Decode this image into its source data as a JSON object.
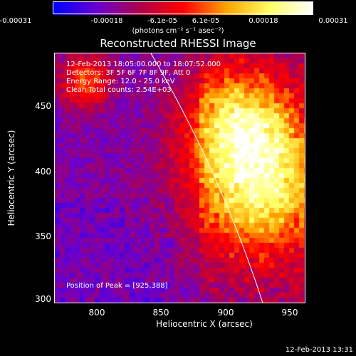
{
  "colorbar": {
    "ticks": [
      "-0.00031",
      "-0.00018",
      "-6.1e-05",
      "6.1e-05",
      "0.00018",
      "0.00031"
    ],
    "unit": "(photons cm⁻² s⁻¹ asec⁻²)",
    "min": -0.00031,
    "max": 0.00031
  },
  "annotations": {
    "time": "12-Feb-2013 18:05:00.000 to 18:07:52.000",
    "detectors": "Detectors: 3F 5F 6F 7F 8F 9F, Att 0",
    "energy": "Energy Range: 12.0 - 25.0 keV",
    "clean": "Clean    Total counts: 2.54E+03",
    "peak": "Position of Peak = [925,388]"
  },
  "footer": "12-Feb-2013 13:31",
  "chart_data": {
    "type": "heatmap",
    "title": "Reconstructed RHESSI Image",
    "xlabel": "Heliocentric X (arcsec)",
    "ylabel": "Heliocentric Y (arcsec)",
    "xlim": [
      766,
      960
    ],
    "ylim": [
      298,
      492
    ],
    "xticks": [
      "800",
      "850",
      "900",
      "950"
    ],
    "yticks": [
      "300",
      "350",
      "400",
      "450"
    ],
    "color_scale": [
      "#0000ff",
      "#6a00d0",
      "#b0004a",
      "#ff0000",
      "#ffa500",
      "#ffff66",
      "#ffffff"
    ],
    "peak": [
      925,
      388
    ],
    "limb_color": "#ffffff"
  }
}
